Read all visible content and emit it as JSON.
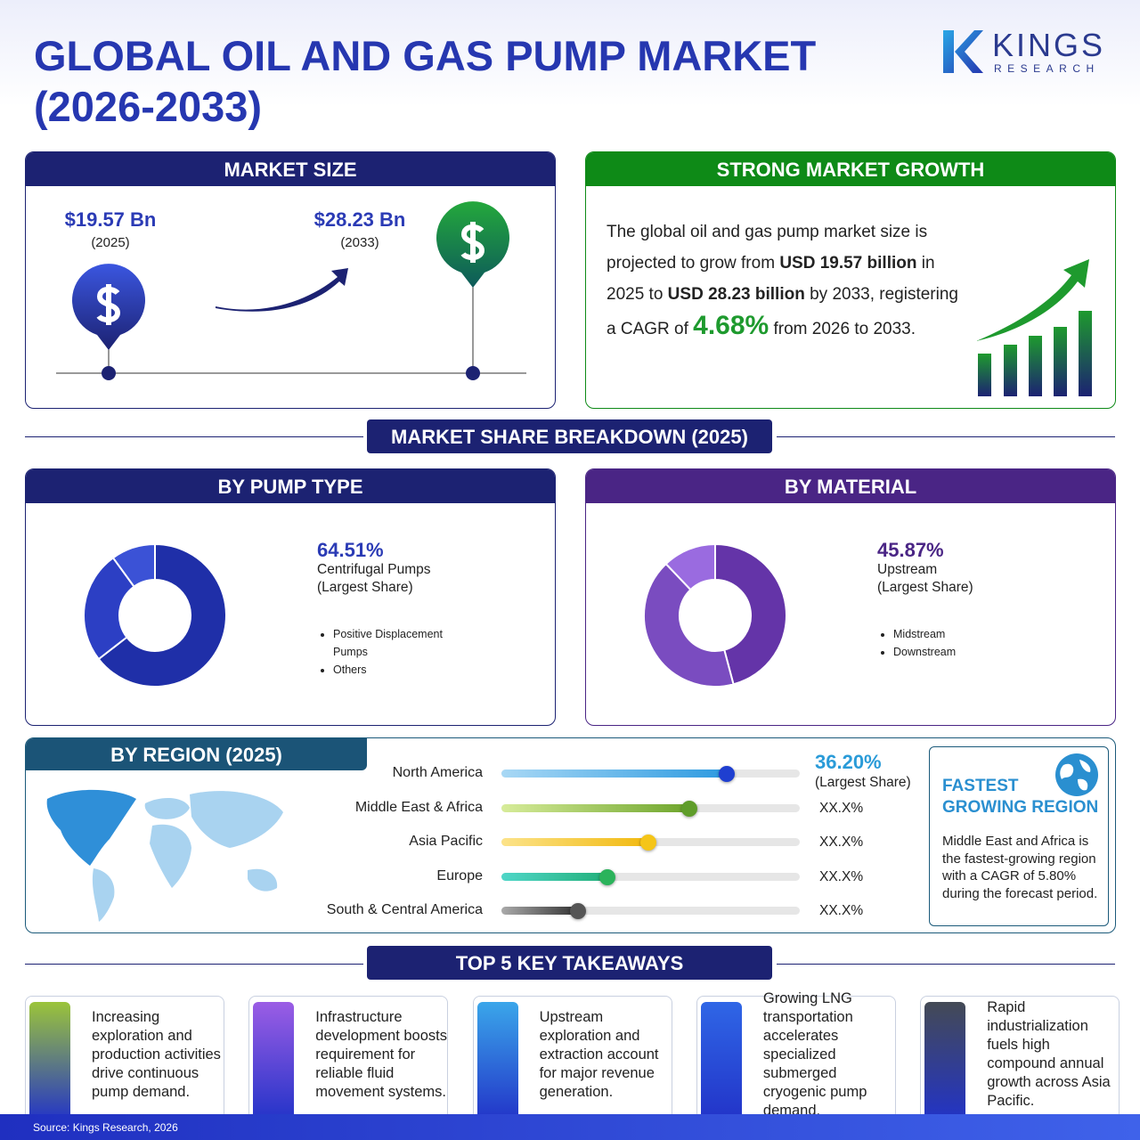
{
  "header": {
    "title_lines": [
      "GLOBAL OIL AND GAS PUMP MARKET",
      "(2026-2033)"
    ]
  },
  "logo": {
    "name": "KINGS",
    "sub": "RESEARCH"
  },
  "market_size": {
    "title": "MARKET SIZE",
    "start": {
      "value": "$19.57 Bn",
      "year": "(2025)"
    },
    "end": {
      "value": "$28.23 Bn",
      "year": "(2033)"
    }
  },
  "growth": {
    "title": "STRONG MARKET GROWTH",
    "text": [
      {
        "text": "The global oil and gas pump market size is projected to grow from "
      },
      {
        "text": "USD 19.57 billion",
        "style": "bold"
      },
      {
        "text": " in 2025 to "
      },
      {
        "text": "USD 28.23 billion",
        "style": "bold"
      },
      {
        "text": " by 2033, registering a CAGR of "
      },
      {
        "text": "4.68%",
        "style": "highlight"
      },
      {
        "text": " from 2026 to 2033."
      }
    ]
  },
  "breakdown": {
    "title": "MARKET SHARE BREAKDOWN (2025)"
  },
  "pump_type": {
    "title": "BY PUMP TYPE",
    "note": "(Largest Share)",
    "segments": [
      {
        "name": "Centrifugal Pumps",
        "value": 64.51,
        "value_label": "64.51%",
        "color": "#1f2fa8"
      },
      {
        "name": "Positive Displacement Pumps",
        "value": 25.5,
        "color": "#2c3fc4"
      },
      {
        "name": "Others",
        "value": 10,
        "color": "#3b52d6"
      }
    ]
  },
  "material": {
    "title": "BY MATERIAL",
    "note": "(Largest Share)",
    "segments": [
      {
        "name": "Upstream",
        "value": 45.87,
        "value_label": "45.87%",
        "color": "#6434a8"
      },
      {
        "name": "Midstream",
        "value": 42,
        "color": "#7a4cc0"
      },
      {
        "name": "Downstream",
        "value": 12.13,
        "color": "#9a6be0"
      }
    ]
  },
  "region": {
    "title": "BY REGION (2025)",
    "note": "(Largest Share)",
    "xlim": [
      0,
      48
    ],
    "rows": [
      {
        "name": "North America",
        "value": 36.2,
        "value_label": "36.20%",
        "colors": [
          "#a8d8f5",
          "#2c9ae0"
        ],
        "knob": "#1f3fd0"
      },
      {
        "name": "Middle East & Africa",
        "value": 30.3,
        "value_label": "XX.X%",
        "colors": [
          "#d7ec9a",
          "#6ea52c"
        ],
        "knob": "#5f9d2a"
      },
      {
        "name": "Asia Pacific",
        "value": 23.7,
        "value_label": "XX.X%",
        "colors": [
          "#fce38a",
          "#f1b90f"
        ],
        "knob": "#f5c518"
      },
      {
        "name": "Europe",
        "value": 17,
        "value_label": "XX.X%",
        "colors": [
          "#4fd6c8",
          "#22b07a"
        ],
        "knob": "#2bb35b"
      },
      {
        "name": "South & Central America",
        "value": 12.3,
        "value_label": "XX.X%",
        "colors": [
          "#aaaaaa",
          "#333333"
        ],
        "knob": "#555555"
      }
    ]
  },
  "fastest": {
    "title_lines": [
      "FASTEST",
      "GROWING REGION"
    ],
    "text": "Middle East and Africa is the fastest-growing region with a CAGR of 5.80% during the forecast period."
  },
  "takeaways": {
    "title": "TOP 5 KEY TAKEAWAYS",
    "items": [
      {
        "text": "Increasing exploration and production activities drive continuous pump demand.",
        "color": "#9bc43a"
      },
      {
        "text": "Infrastructure development boosts requirement for reliable fluid movement systems.",
        "color": "#9b5de5"
      },
      {
        "text": "Upstream exploration and extraction account for major revenue generation.",
        "color": "#3aa6ea"
      },
      {
        "text": "Growing LNG transportation accelerates specialized submerged cryogenic pump demand.",
        "color": "#2f66e6"
      },
      {
        "text": "Rapid industrialization fuels high compound annual growth across Asia Pacific.",
        "color": "#444a55"
      }
    ]
  },
  "source": "Source: Kings Research, 2026"
}
